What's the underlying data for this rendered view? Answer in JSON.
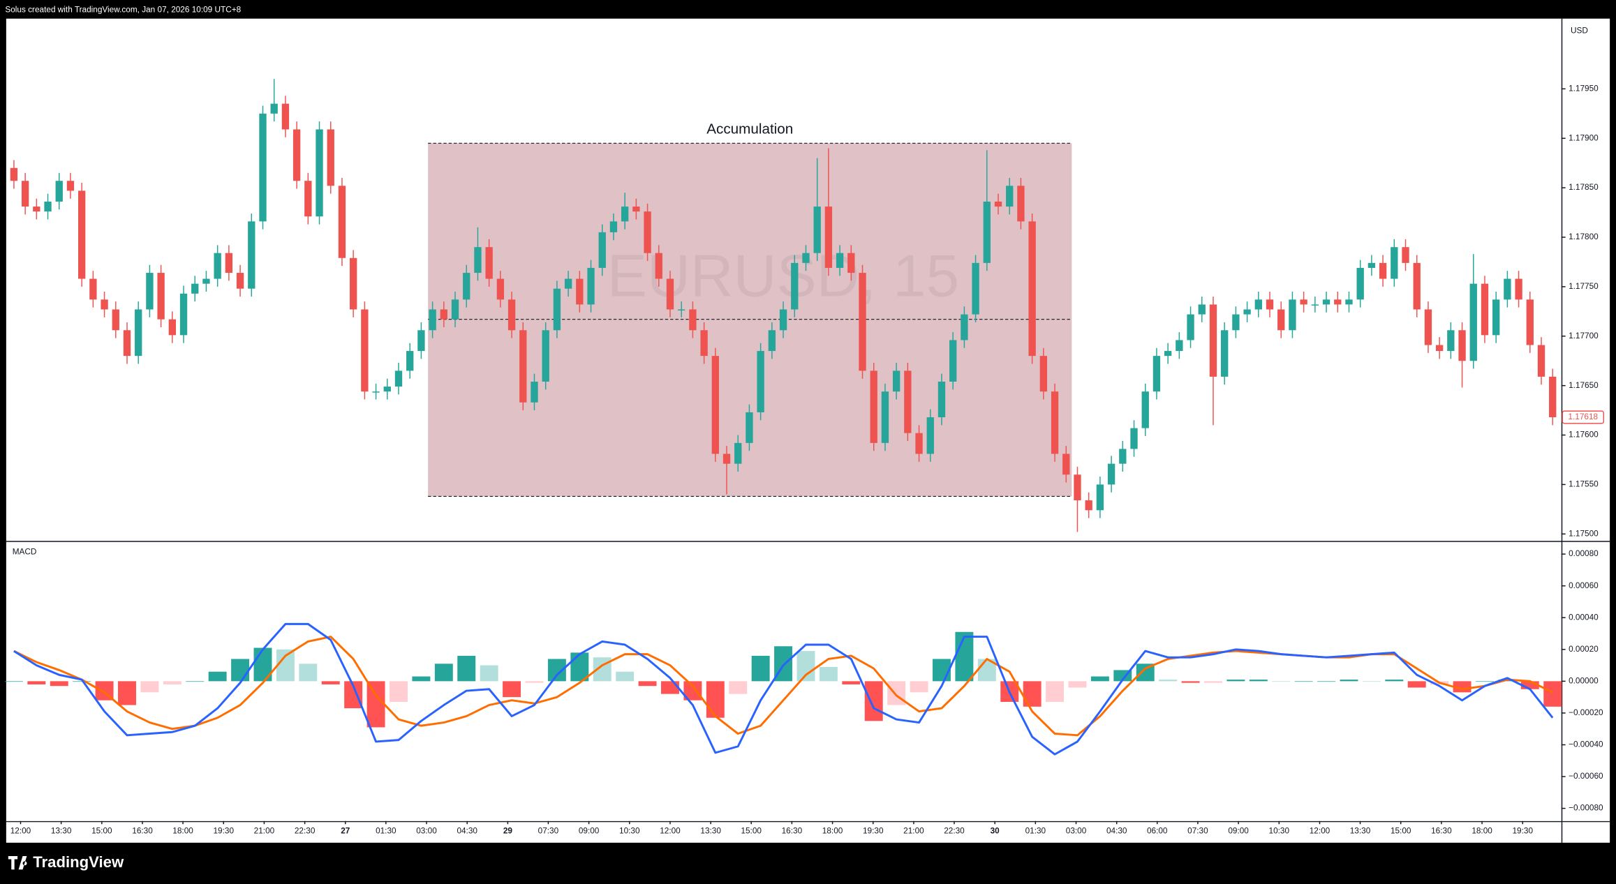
{
  "header": {
    "text": "Solus created with TradingView.com, Jan 07, 2026 10:09 UTC+8"
  },
  "footer": {
    "brand": "TradingView"
  },
  "chart_data": [
    {
      "type": "candlestick",
      "watermark": "EURUSD, 15",
      "currency": "USD",
      "up_color": "#26a69a",
      "down_color": "#ef5350",
      "xlim": [
        -0.5,
        136.5
      ],
      "ylim": [
        1.17493,
        1.18021
      ],
      "yticks": [
        {
          "value": 1.1795,
          "label": "1.17950"
        },
        {
          "value": 1.179,
          "label": "1.17900"
        },
        {
          "value": 1.1785,
          "label": "1.17850"
        },
        {
          "value": 1.178,
          "label": "1.17800"
        },
        {
          "value": 1.1775,
          "label": "1.17750"
        },
        {
          "value": 1.177,
          "label": "1.17700"
        },
        {
          "value": 1.1765,
          "label": "1.17650"
        },
        {
          "value": 1.176,
          "label": "1.17600"
        },
        {
          "value": 1.1755,
          "label": "1.17550"
        },
        {
          "value": 1.175,
          "label": "1.17500"
        }
      ],
      "xticks": [
        {
          "value": 0.59,
          "label": "12:00"
        },
        {
          "value": 4.18,
          "label": "13:30"
        },
        {
          "value": 7.77,
          "label": "15:00"
        },
        {
          "value": 11.36,
          "label": "16:30"
        },
        {
          "value": 14.94,
          "label": "18:00"
        },
        {
          "value": 18.53,
          "label": "19:30"
        },
        {
          "value": 22.12,
          "label": "21:00"
        },
        {
          "value": 25.71,
          "label": "22:30"
        },
        {
          "value": 29.3,
          "label": "27"
        },
        {
          "value": 32.88,
          "label": "01:30"
        },
        {
          "value": 36.47,
          "label": "03:00"
        },
        {
          "value": 40.06,
          "label": "04:30"
        },
        {
          "value": 43.65,
          "label": "29"
        },
        {
          "value": 47.23,
          "label": "07:30"
        },
        {
          "value": 50.82,
          "label": "09:00"
        },
        {
          "value": 54.41,
          "label": "10:30"
        },
        {
          "value": 58.0,
          "label": "12:00"
        },
        {
          "value": 61.59,
          "label": "13:30"
        },
        {
          "value": 65.17,
          "label": "15:00"
        },
        {
          "value": 68.76,
          "label": "16:30"
        },
        {
          "value": 72.35,
          "label": "18:00"
        },
        {
          "value": 75.94,
          "label": "19:30"
        },
        {
          "value": 79.53,
          "label": "21:00"
        },
        {
          "value": 83.11,
          "label": "22:30"
        },
        {
          "value": 86.7,
          "label": "30"
        },
        {
          "value": 90.29,
          "label": "01:30"
        },
        {
          "value": 93.88,
          "label": "03:00"
        },
        {
          "value": 97.47,
          "label": "04:30"
        },
        {
          "value": 101.05,
          "label": "06:00"
        },
        {
          "value": 104.64,
          "label": "07:30"
        },
        {
          "value": 108.23,
          "label": "09:00"
        },
        {
          "value": 111.82,
          "label": "10:30"
        },
        {
          "value": 115.41,
          "label": "12:00"
        },
        {
          "value": 118.99,
          "label": "13:30"
        },
        {
          "value": 122.58,
          "label": "15:00"
        },
        {
          "value": 126.17,
          "label": "16:30"
        },
        {
          "value": 129.76,
          "label": "18:00"
        },
        {
          "value": 133.35,
          "label": "19:30"
        }
      ],
      "last_price": 1.17618,
      "annotation": {
        "label": "Accumulation",
        "x_start": 36.6,
        "x_end": 93.5,
        "top": 1.17895,
        "middle": 1.17717,
        "bottom": 1.17538
      },
      "open": [
        1.1787,
        1.17857,
        1.17831,
        1.17826,
        1.17836,
        1.17857,
        1.17847,
        1.17758,
        1.17737,
        1.17727,
        1.17706,
        1.1768,
        1.17727,
        1.17764,
        1.17717,
        1.17701,
        1.17743,
        1.17753,
        1.17758,
        1.17784,
        1.17764,
        1.17748,
        1.17816,
        1.17925,
        1.17935,
        1.17909,
        1.17857,
        1.17821,
        1.17909,
        1.17852,
        1.17779,
        1.17727,
        1.17644,
        1.17644,
        1.17649,
        1.17665,
        1.17685,
        1.17706,
        1.17727,
        1.17717,
        1.17737,
        1.17764,
        1.1779,
        1.17758,
        1.17737,
        1.17706,
        1.17633,
        1.17654,
        1.17706,
        1.17748,
        1.17758,
        1.17732,
        1.17769,
        1.17805,
        1.17816,
        1.17831,
        1.17826,
        1.17784,
        1.17758,
        1.17727,
        1.17727,
        1.17706,
        1.1768,
        1.17581,
        1.17571,
        1.17592,
        1.17623,
        1.17685,
        1.17706,
        1.17727,
        1.17774,
        1.17784,
        1.17831,
        1.17769,
        1.17784,
        1.17764,
        1.17665,
        1.17592,
        1.17644,
        1.17665,
        1.17602,
        1.17581,
        1.17618,
        1.17654,
        1.17696,
        1.17722,
        1.17774,
        1.17836,
        1.17831,
        1.17852,
        1.17816,
        1.1768,
        1.17644,
        1.17581,
        1.1756,
        1.17534,
        1.17524,
        1.1755,
        1.17571,
        1.17586,
        1.17607,
        1.17644,
        1.1768,
        1.17685,
        1.17696,
        1.17722,
        1.17732,
        1.17659,
        1.17706,
        1.17722,
        1.17727,
        1.17737,
        1.17727,
        1.17706,
        1.17737,
        1.17732,
        1.17732,
        1.17737,
        1.17732,
        1.17737,
        1.17769,
        1.17774,
        1.17758,
        1.1779,
        1.17774,
        1.17727,
        1.17691,
        1.17685,
        1.17706,
        1.17675,
        1.17753,
        1.17701,
        1.17737,
        1.17758,
        1.17737,
        1.17691,
        1.17659
      ],
      "high": [
        1.17878,
        1.17865,
        1.17839,
        1.17844,
        1.17865,
        1.17865,
        1.17855,
        1.17766,
        1.17745,
        1.17735,
        1.17714,
        1.17735,
        1.17772,
        1.17772,
        1.17725,
        1.17751,
        1.17761,
        1.17766,
        1.17792,
        1.17792,
        1.17772,
        1.17824,
        1.17933,
        1.1796,
        1.17943,
        1.17917,
        1.17865,
        1.17917,
        1.17917,
        1.1786,
        1.17787,
        1.17735,
        1.17652,
        1.17657,
        1.17673,
        1.17693,
        1.17714,
        1.17735,
        1.17735,
        1.17745,
        1.17772,
        1.1781,
        1.17798,
        1.17766,
        1.17745,
        1.17714,
        1.17662,
        1.17714,
        1.17756,
        1.17766,
        1.17766,
        1.17777,
        1.17813,
        1.17824,
        1.17845,
        1.17839,
        1.17834,
        1.17792,
        1.17766,
        1.17735,
        1.17735,
        1.17714,
        1.17688,
        1.17589,
        1.176,
        1.17631,
        1.17693,
        1.17714,
        1.17735,
        1.17782,
        1.17792,
        1.1788,
        1.1789,
        1.17792,
        1.17792,
        1.17772,
        1.17673,
        1.17652,
        1.17673,
        1.17673,
        1.1761,
        1.17626,
        1.17662,
        1.17704,
        1.1773,
        1.17782,
        1.17888,
        1.17844,
        1.1786,
        1.1786,
        1.17824,
        1.17688,
        1.17652,
        1.17589,
        1.17568,
        1.17542,
        1.17558,
        1.17579,
        1.17594,
        1.17615,
        1.17652,
        1.17688,
        1.17693,
        1.17704,
        1.1773,
        1.1774,
        1.1774,
        1.17714,
        1.1773,
        1.17735,
        1.17745,
        1.17745,
        1.17735,
        1.17745,
        1.17745,
        1.1774,
        1.17745,
        1.17745,
        1.17745,
        1.17777,
        1.17782,
        1.17782,
        1.17798,
        1.17798,
        1.17782,
        1.17735,
        1.17699,
        1.17714,
        1.17714,
        1.17783,
        1.17761,
        1.17745,
        1.17766,
        1.17766,
        1.17745,
        1.17699,
        1.17667
      ],
      "low": [
        1.17849,
        1.17823,
        1.17818,
        1.17818,
        1.17828,
        1.17839,
        1.1775,
        1.17729,
        1.17719,
        1.17698,
        1.17672,
        1.17672,
        1.17719,
        1.17709,
        1.17693,
        1.17693,
        1.17735,
        1.17745,
        1.1775,
        1.17756,
        1.1774,
        1.1774,
        1.17808,
        1.17917,
        1.17901,
        1.17849,
        1.17813,
        1.17813,
        1.17844,
        1.17771,
        1.17719,
        1.17636,
        1.17636,
        1.17636,
        1.17641,
        1.17657,
        1.17677,
        1.17698,
        1.17709,
        1.17709,
        1.17729,
        1.17756,
        1.1775,
        1.17729,
        1.17698,
        1.17625,
        1.17625,
        1.17646,
        1.17698,
        1.1774,
        1.17724,
        1.17724,
        1.17761,
        1.17797,
        1.17808,
        1.17818,
        1.17776,
        1.1775,
        1.17719,
        1.17719,
        1.17698,
        1.17672,
        1.17573,
        1.1754,
        1.17563,
        1.17584,
        1.17615,
        1.17677,
        1.17698,
        1.17719,
        1.17766,
        1.17776,
        1.17761,
        1.17761,
        1.17756,
        1.17657,
        1.17584,
        1.17584,
        1.17636,
        1.17594,
        1.17573,
        1.17573,
        1.1761,
        1.17646,
        1.17688,
        1.17714,
        1.17766,
        1.17823,
        1.17823,
        1.17808,
        1.17672,
        1.17636,
        1.17573,
        1.17552,
        1.17502,
        1.17516,
        1.17516,
        1.17542,
        1.17563,
        1.17578,
        1.17599,
        1.17636,
        1.17672,
        1.17677,
        1.17688,
        1.17714,
        1.1761,
        1.17651,
        1.17698,
        1.17714,
        1.17719,
        1.17719,
        1.17698,
        1.17698,
        1.17724,
        1.17724,
        1.17724,
        1.17724,
        1.17724,
        1.17729,
        1.17761,
        1.1775,
        1.1775,
        1.17766,
        1.17719,
        1.17683,
        1.17677,
        1.17677,
        1.17648,
        1.17667,
        1.17693,
        1.17693,
        1.17729,
        1.17729,
        1.17683,
        1.17651,
        1.1761
      ],
      "close": [
        1.17857,
        1.17831,
        1.17826,
        1.17836,
        1.17857,
        1.17847,
        1.17758,
        1.17737,
        1.17727,
        1.17706,
        1.1768,
        1.17727,
        1.17764,
        1.17717,
        1.17701,
        1.17743,
        1.17753,
        1.17758,
        1.17784,
        1.17764,
        1.17748,
        1.17816,
        1.17925,
        1.17935,
        1.17909,
        1.17857,
        1.17821,
        1.17909,
        1.17852,
        1.17779,
        1.17727,
        1.17644,
        1.17644,
        1.17649,
        1.17665,
        1.17685,
        1.17706,
        1.17727,
        1.17717,
        1.17737,
        1.17764,
        1.1779,
        1.17758,
        1.17737,
        1.17706,
        1.17633,
        1.17654,
        1.17706,
        1.17748,
        1.17758,
        1.17732,
        1.17769,
        1.17805,
        1.17816,
        1.17831,
        1.17826,
        1.17784,
        1.17758,
        1.17727,
        1.17727,
        1.17706,
        1.1768,
        1.17581,
        1.17571,
        1.17592,
        1.17623,
        1.17685,
        1.17706,
        1.17727,
        1.17774,
        1.17784,
        1.17831,
        1.17769,
        1.17784,
        1.17764,
        1.17665,
        1.17592,
        1.17644,
        1.17665,
        1.17602,
        1.17581,
        1.17618,
        1.17654,
        1.17696,
        1.17722,
        1.17774,
        1.17836,
        1.17831,
        1.17852,
        1.17816,
        1.1768,
        1.17644,
        1.17581,
        1.1756,
        1.17534,
        1.17524,
        1.1755,
        1.17571,
        1.17586,
        1.17607,
        1.17644,
        1.1768,
        1.17685,
        1.17696,
        1.17722,
        1.17732,
        1.17659,
        1.17706,
        1.17722,
        1.17727,
        1.17737,
        1.17727,
        1.17706,
        1.17737,
        1.17732,
        1.17732,
        1.17737,
        1.17732,
        1.17737,
        1.17769,
        1.17774,
        1.17758,
        1.1779,
        1.17774,
        1.17727,
        1.17691,
        1.17685,
        1.17706,
        1.17675,
        1.17753,
        1.17701,
        1.17737,
        1.17758,
        1.17737,
        1.17691,
        1.17659,
        1.17618
      ]
    },
    {
      "type": "macd",
      "title": "MACD",
      "xlim": [
        -0.5,
        136.5
      ],
      "ylim": [
        -0.00088,
        0.00087
      ],
      "yticks": [
        {
          "value": 0.0008,
          "label": "0.00080"
        },
        {
          "value": 0.0006,
          "label": "0.00060"
        },
        {
          "value": 0.0004,
          "label": "0.00040"
        },
        {
          "value": 0.0002,
          "label": "0.00020"
        },
        {
          "value": 0,
          "label": "0.00000"
        },
        {
          "value": -0.0002,
          "label": "−0.00020"
        },
        {
          "value": -0.0004,
          "label": "−0.00040"
        },
        {
          "value": -0.0006,
          "label": "−0.00060"
        },
        {
          "value": -0.0008,
          "label": "−0.00080"
        }
      ],
      "x": [
        0,
        2,
        4,
        6,
        8,
        10,
        12,
        14,
        16,
        18,
        20,
        22,
        24,
        26,
        28,
        30,
        32,
        34,
        36,
        38,
        40,
        42,
        44,
        46,
        48,
        50,
        52,
        54,
        56,
        58,
        60,
        62,
        64,
        66,
        68,
        70,
        72,
        74,
        76,
        78,
        80,
        82,
        84,
        86,
        88,
        90,
        92,
        94,
        96,
        98,
        100,
        102,
        104,
        106,
        108,
        110,
        112,
        114,
        116,
        118,
        120,
        122,
        124,
        126,
        128,
        130,
        132,
        134,
        136
      ],
      "macd": {
        "color": "#2962ff",
        "values": [
          0.00019,
          0.0001,
          4e-05,
          1e-05,
          -0.00019,
          -0.00034,
          -0.00033,
          -0.00032,
          -0.00028,
          -0.00017,
          -1e-05,
          0.0002,
          0.00036,
          0.00036,
          0.00026,
          -3e-05,
          -0.00038,
          -0.00037,
          -0.00025,
          -0.00015,
          -6e-05,
          -5e-05,
          -0.00022,
          -0.00015,
          4e-05,
          0.00017,
          0.00025,
          0.00023,
          0.00014,
          2e-05,
          -0.00015,
          -0.00045,
          -0.00041,
          -0.00012,
          0.0001,
          0.00023,
          0.00023,
          0.00014,
          -0.00017,
          -0.00024,
          -0.00026,
          -3e-05,
          0.00028,
          0.00028,
          -7e-05,
          -0.00035,
          -0.00046,
          -0.00038,
          -0.00019,
          1e-05,
          0.00019,
          0.00015,
          0.00015,
          0.00017,
          0.0002,
          0.00019,
          0.00017,
          0.00016,
          0.00015,
          0.00016,
          0.00017,
          0.00018,
          4e-05,
          -3e-05,
          -0.00012,
          -3e-05,
          2e-05,
          -5e-05,
          -0.00023
        ]
      },
      "signal": {
        "color": "#ff6d00",
        "values": [
          0.00019,
          0.00012,
          7e-05,
          1e-05,
          -7e-05,
          -0.00019,
          -0.00026,
          -0.0003,
          -0.00028,
          -0.00023,
          -0.00015,
          -1e-05,
          0.00016,
          0.00025,
          0.00028,
          0.00014,
          -9e-05,
          -0.00024,
          -0.00028,
          -0.00026,
          -0.00022,
          -0.00015,
          -0.00012,
          -0.00014,
          -0.0001,
          -1e-05,
          0.0001,
          0.00017,
          0.00017,
          0.0001,
          -3e-05,
          -0.00022,
          -0.00033,
          -0.00028,
          -0.00012,
          4e-05,
          0.00014,
          0.00016,
          8e-05,
          -9e-05,
          -0.00019,
          -0.00017,
          -3e-05,
          0.00014,
          6e-05,
          -0.00019,
          -0.00033,
          -0.00034,
          -0.00022,
          -6e-05,
          8e-05,
          0.00014,
          0.00016,
          0.00018,
          0.00019,
          0.00018,
          0.00017,
          0.00016,
          0.00015,
          0.00015,
          0.00017,
          0.00017,
          8e-05,
          -1e-05,
          -5e-05,
          -3e-05,
          1e-05,
          0,
          -7e-05
        ]
      },
      "histogram": {
        "colors": {
          "grow_above": "#26a69a",
          "fall_above": "#b2dfdb",
          "grow_below": "#ffcdd2",
          "fall_below": "#ff5252"
        },
        "values": [
          0,
          -2e-05,
          -3e-05,
          0,
          -0.00012,
          -0.00015,
          -7e-05,
          -2e-05,
          0,
          6e-05,
          0.00014,
          0.00021,
          0.0002,
          0.00011,
          -2e-05,
          -0.00017,
          -0.00029,
          -0.00013,
          3e-05,
          0.00011,
          0.00016,
          0.0001,
          -0.0001,
          -1e-05,
          0.00014,
          0.00018,
          0.00015,
          6e-05,
          -3e-05,
          -8e-05,
          -0.00012,
          -0.00023,
          -8e-05,
          0.00016,
          0.00022,
          0.00019,
          9e-05,
          -2e-05,
          -0.00025,
          -0.00015,
          -7e-05,
          0.00014,
          0.00031,
          0.00014,
          -0.00013,
          -0.00016,
          -0.00013,
          -4e-05,
          3e-05,
          7e-05,
          0.00011,
          1e-05,
          -1e-05,
          -1e-05,
          1e-05,
          1e-05,
          0,
          0,
          0,
          1e-05,
          0,
          1e-05,
          -4e-05,
          -2e-05,
          -7e-05,
          0,
          1e-05,
          -5e-05,
          -0.00016
        ]
      }
    }
  ]
}
